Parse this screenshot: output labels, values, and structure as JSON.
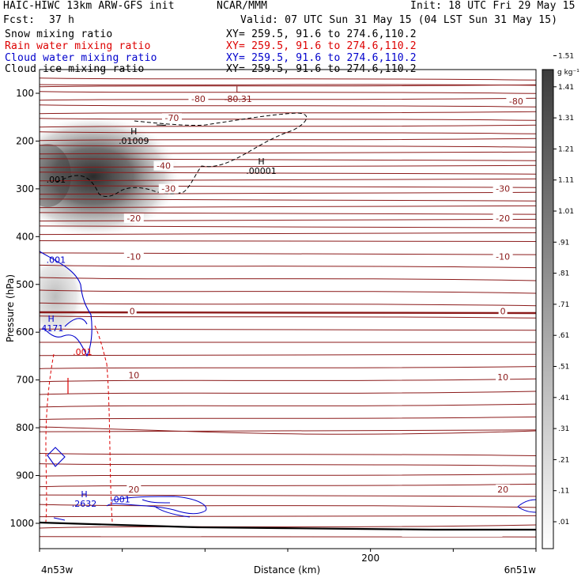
{
  "header": {
    "model": "HAIC-HIWC 13km ARW-GFS init",
    "org": "NCAR/MMM",
    "init": "Init: 18 UTC Fri 29 May 15",
    "fcst_label": "Fcst:",
    "fcst_value": "37 h",
    "valid": "Valid: 07 UTC Sun 31 May 15 (04 LST Sun 31 May 15)"
  },
  "fields": [
    {
      "name": "Snow mixing ratio",
      "xy": "XY= 259.5, 91.6 to 274.6,110.2",
      "color": "#000000"
    },
    {
      "name": "Rain water mixing ratio",
      "xy": "XY= 259.5, 91.6 to 274.6,110.2",
      "color": "#dd0000"
    },
    {
      "name": "Cloud water mixing ratio",
      "xy": "XY= 259.5, 91.6 to 274.6,110.2",
      "color": "#0000cc"
    },
    {
      "name": "Cloud ice mixing ratio",
      "xy": "XY= 259.5, 91.6 to 274.6,110.2",
      "color": "#000000"
    }
  ],
  "chart_data": {
    "type": "heatmap",
    "xlabel": "Distance (km)",
    "ylabel": "Pressure (hPa)",
    "xlim": [
      0,
      300
    ],
    "ylim": [
      1020,
      65
    ],
    "x_ticks": [
      200
    ],
    "y_ticks": [
      100,
      200,
      300,
      400,
      500,
      600,
      700,
      800,
      900,
      1000
    ],
    "x_endpoints": {
      "left": "4n53w",
      "right": "6n51w"
    },
    "colorbar": {
      "unit": "g kg⁻¹",
      "levels": [
        ".01",
        ".11",
        ".21",
        ".31",
        ".41",
        ".51",
        ".61",
        ".71",
        ".81",
        ".91",
        "1.01",
        "1.11",
        "1.21",
        "1.31",
        "1.41",
        "1.51"
      ]
    },
    "temperature_contours": {
      "color": "#8b1a1a",
      "labels": [
        {
          "text": "-80",
          "x": 96,
          "p": 115
        },
        {
          "text": "-80",
          "x": 288,
          "p": 120
        },
        {
          "text": "-70",
          "x": 80,
          "p": 155
        },
        {
          "text": "-40",
          "x": 75,
          "p": 255
        },
        {
          "text": "-30",
          "x": 78,
          "p": 303
        },
        {
          "text": "-30",
          "x": 280,
          "p": 303
        },
        {
          "text": "-20",
          "x": 57,
          "p": 365
        },
        {
          "text": "-20",
          "x": 280,
          "p": 365
        },
        {
          "text": "-10",
          "x": 57,
          "p": 445
        },
        {
          "text": "-10",
          "x": 280,
          "p": 445
        },
        {
          "text": "0",
          "x": 56,
          "p": 559
        },
        {
          "text": "0",
          "x": 280,
          "p": 559
        },
        {
          "text": "10",
          "x": 57,
          "p": 693
        },
        {
          "text": "10",
          "x": 280,
          "p": 697
        },
        {
          "text": "20",
          "x": 57,
          "p": 932
        },
        {
          "text": "20",
          "x": 280,
          "p": 932
        }
      ]
    },
    "extrema": [
      {
        "letter": "L",
        "value": "-80.31",
        "x": 120,
        "p": 108,
        "color": "#8b1a1a"
      },
      {
        "letter": "H",
        "value": ".01009",
        "x": 57,
        "p": 196,
        "color": "#000000"
      },
      {
        "letter": "H",
        "value": ".00001",
        "x": 134,
        "p": 259,
        "color": "#000000"
      },
      {
        "letter": "H",
        "value": ".4171",
        "x": 7,
        "p": 588,
        "color": "#0000cc"
      },
      {
        "letter": "H",
        "value": ".2632",
        "x": 27,
        "p": 955,
        "color": "#0000cc"
      }
    ],
    "contour_labels": [
      {
        "text": ".001",
        "x": 10,
        "p": 287,
        "color": "#000000"
      },
      {
        "text": ".001",
        "x": 10,
        "p": 455,
        "color": "#0000cc"
      },
      {
        "text": ".001",
        "x": 26,
        "p": 648,
        "color": "#dd0000"
      },
      {
        "text": ".001",
        "x": 49,
        "p": 956,
        "color": "#0000cc"
      }
    ]
  }
}
